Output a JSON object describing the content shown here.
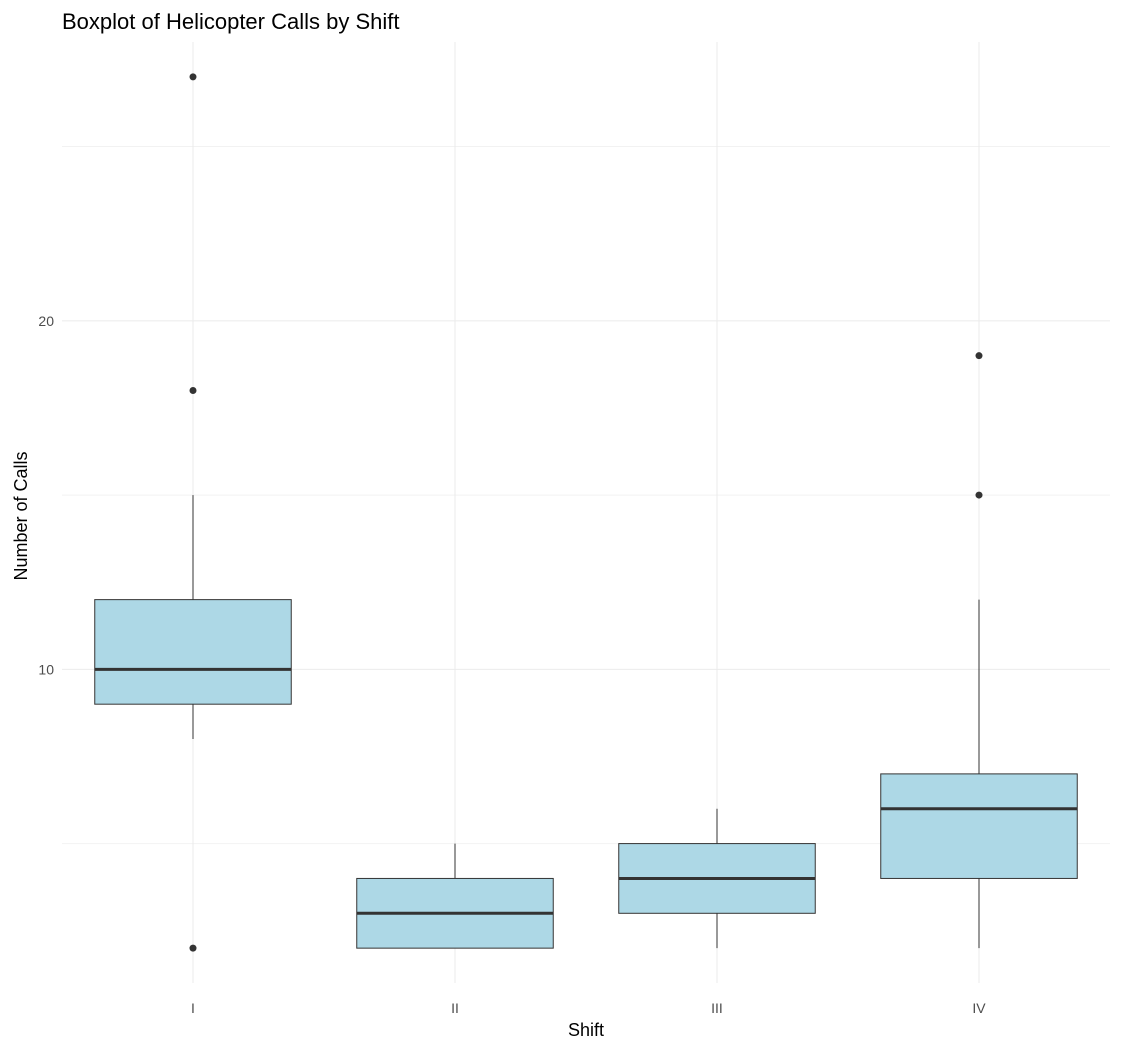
{
  "chart_data": {
    "type": "boxplot",
    "title": "Boxplot of Helicopter Calls by Shift",
    "xlabel": "Shift",
    "ylabel": "Number of Calls",
    "categories": [
      "I",
      "II",
      "III",
      "IV"
    ],
    "ylim": [
      1,
      28
    ],
    "yticks": [
      10,
      20
    ],
    "box_fill": "#add8e6",
    "box_stroke": "#333333",
    "boxes": [
      {
        "category": "I",
        "lower_whisker": 8,
        "q1": 9,
        "median": 10,
        "q3": 12,
        "upper_whisker": 15,
        "outliers": [
          27,
          18,
          2
        ]
      },
      {
        "category": "II",
        "lower_whisker": 2,
        "q1": 2,
        "median": 3,
        "q3": 4,
        "upper_whisker": 5,
        "outliers": []
      },
      {
        "category": "III",
        "lower_whisker": 2,
        "q1": 3,
        "median": 4,
        "q3": 5,
        "upper_whisker": 6,
        "outliers": []
      },
      {
        "category": "IV",
        "lower_whisker": 2,
        "q1": 4,
        "median": 6,
        "q3": 7,
        "upper_whisker": 12,
        "outliers": [
          19,
          15
        ]
      }
    ],
    "grid": true,
    "legend": "none"
  }
}
